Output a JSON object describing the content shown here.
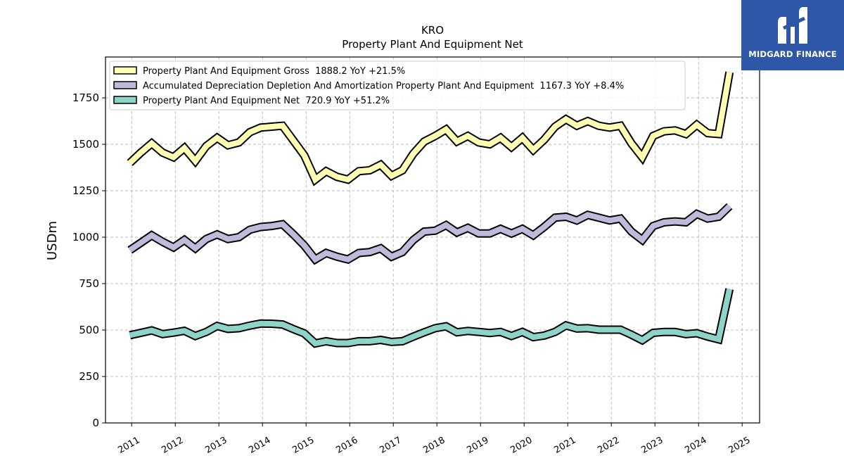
{
  "logo": {
    "text": "MIDGARD FINANCE"
  },
  "chart_data": {
    "type": "line",
    "title": "KRO",
    "subtitle": "Property Plant And Equipment Net",
    "xlabel": "",
    "ylabel": "USDm",
    "ylim": [
      0,
      1970
    ],
    "xlim": [
      2010.4,
      2025.4
    ],
    "yticks": [
      0,
      250,
      500,
      750,
      1000,
      1250,
      1500,
      1750
    ],
    "xticks": [
      "2011",
      "2012",
      "2013",
      "2014",
      "2015",
      "2016",
      "2017",
      "2018",
      "2019",
      "2020",
      "2021",
      "2022",
      "2023",
      "2024",
      "2025"
    ],
    "grid": true,
    "legend_position": "top-left",
    "x": [
      2010.96,
      2011.21,
      2011.46,
      2011.71,
      2011.96,
      2012.21,
      2012.46,
      2012.71,
      2012.96,
      2013.21,
      2013.46,
      2013.71,
      2013.96,
      2014.21,
      2014.46,
      2014.71,
      2014.96,
      2015.21,
      2015.46,
      2015.71,
      2015.96,
      2016.21,
      2016.46,
      2016.71,
      2016.96,
      2017.21,
      2017.46,
      2017.71,
      2017.96,
      2018.21,
      2018.46,
      2018.71,
      2018.96,
      2019.21,
      2019.46,
      2019.71,
      2019.96,
      2020.21,
      2020.46,
      2020.71,
      2020.96,
      2021.21,
      2021.46,
      2021.71,
      2021.96,
      2022.21,
      2022.46,
      2022.71,
      2022.96,
      2023.21,
      2023.46,
      2023.71,
      2023.96,
      2024.21,
      2024.46,
      2024.71
    ],
    "series": [
      {
        "name": "Property Plant And Equipment Gross  1888.2 YoY +21.5%",
        "color": "#ffffb3",
        "values": [
          1400,
          1455,
          1505,
          1455,
          1430,
          1480,
          1410,
          1490,
          1535,
          1495,
          1510,
          1565,
          1590,
          1595,
          1600,
          1520,
          1440,
          1310,
          1355,
          1325,
          1310,
          1355,
          1360,
          1390,
          1330,
          1360,
          1450,
          1515,
          1545,
          1580,
          1515,
          1545,
          1510,
          1500,
          1535,
          1485,
          1535,
          1470,
          1525,
          1595,
          1635,
          1600,
          1625,
          1600,
          1590,
          1600,
          1505,
          1430,
          1545,
          1570,
          1575,
          1555,
          1605,
          1560,
          1555,
          1888
        ]
      },
      {
        "name": "Accumulated Depreciation Depletion And Amortization Property Plant And Equipment  1167.3 YoY +8.4%",
        "color": "#bebada",
        "values": [
          930,
          970,
          1010,
          975,
          945,
          985,
          940,
          990,
          1015,
          990,
          1000,
          1040,
          1055,
          1060,
          1070,
          1015,
          955,
          880,
          915,
          895,
          880,
          915,
          920,
          940,
          895,
          920,
          985,
          1030,
          1035,
          1065,
          1025,
          1050,
          1020,
          1020,
          1045,
          1020,
          1045,
          1010,
          1055,
          1105,
          1110,
          1090,
          1120,
          1105,
          1090,
          1100,
          1030,
          985,
          1060,
          1080,
          1085,
          1080,
          1125,
          1100,
          1110,
          1167
        ]
      },
      {
        "name": "Property Plant And Equipment Net  720.9 YoY +51.2%",
        "color": "#8dd3c7",
        "values": [
          472,
          485,
          498,
          478,
          486,
          496,
          468,
          490,
          522,
          506,
          510,
          524,
          535,
          534,
          530,
          505,
          482,
          428,
          440,
          430,
          430,
          440,
          440,
          447,
          436,
          440,
          465,
          488,
          510,
          520,
          488,
          495,
          490,
          484,
          490,
          468,
          490,
          462,
          470,
          490,
          525,
          508,
          510,
          502,
          502,
          502,
          475,
          445,
          485,
          490,
          490,
          478,
          483,
          465,
          450,
          721
        ]
      }
    ]
  }
}
